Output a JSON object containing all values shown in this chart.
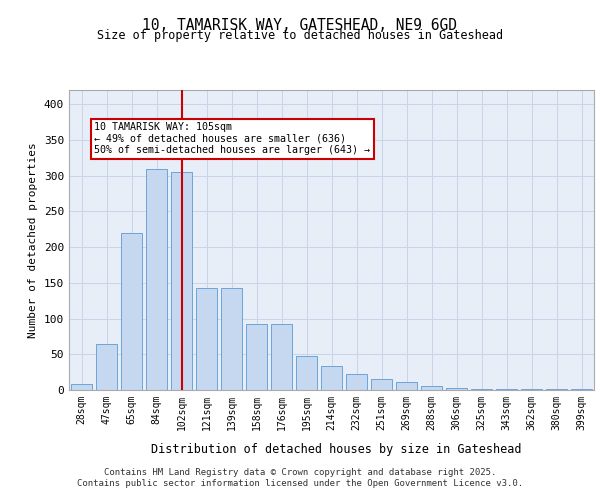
{
  "title_line1": "10, TAMARISK WAY, GATESHEAD, NE9 6GD",
  "title_line2": "Size of property relative to detached houses in Gateshead",
  "xlabel": "Distribution of detached houses by size in Gateshead",
  "ylabel": "Number of detached properties",
  "categories": [
    "28sqm",
    "47sqm",
    "65sqm",
    "84sqm",
    "102sqm",
    "121sqm",
    "139sqm",
    "158sqm",
    "176sqm",
    "195sqm",
    "214sqm",
    "232sqm",
    "251sqm",
    "269sqm",
    "288sqm",
    "306sqm",
    "325sqm",
    "343sqm",
    "362sqm",
    "380sqm",
    "399sqm"
  ],
  "bar_heights": [
    9,
    65,
    220,
    310,
    305,
    143,
    143,
    92,
    92,
    48,
    33,
    22,
    15,
    11,
    5,
    3,
    2,
    2,
    1,
    1,
    2
  ],
  "bar_color": "#c5d8f0",
  "bar_edge_color": "#5b9bd5",
  "grid_color": "#c8d4e8",
  "background_color": "#e8eef8",
  "vline_color": "#cc0000",
  "annotation_text": "10 TAMARISK WAY: 105sqm\n← 49% of detached houses are smaller (636)\n50% of semi-detached houses are larger (643) →",
  "annotation_box_color": "#cc0000",
  "footer_text": "Contains HM Land Registry data © Crown copyright and database right 2025.\nContains public sector information licensed under the Open Government Licence v3.0.",
  "ylim": [
    0,
    420
  ],
  "yticks": [
    0,
    50,
    100,
    150,
    200,
    250,
    300,
    350,
    400
  ]
}
